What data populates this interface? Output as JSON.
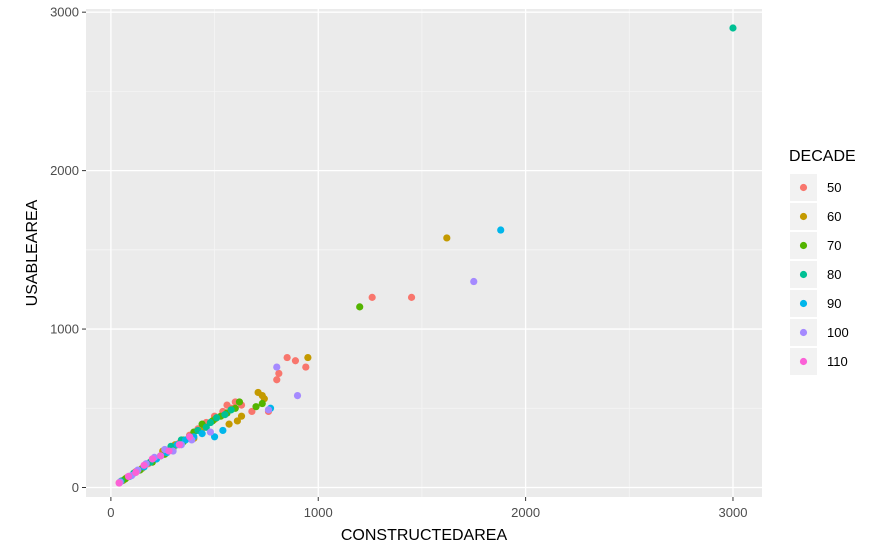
{
  "chart_data": {
    "type": "scatter",
    "title": "",
    "xlabel": "CONSTRUCTEDAREA",
    "ylabel": "USABLEAREA",
    "xlim": [
      -120,
      3140
    ],
    "ylim": [
      -60,
      3020
    ],
    "x_ticks": [
      0,
      1000,
      2000,
      3000
    ],
    "y_ticks": [
      0,
      1000,
      2000,
      3000
    ],
    "grid": true,
    "legend": {
      "title": "DECADE",
      "placement": "right"
    },
    "series": [
      {
        "name": "50",
        "color": "#F8766D",
        "points": [
          [
            40,
            30
          ],
          [
            80,
            65
          ],
          [
            120,
            100
          ],
          [
            180,
            150
          ],
          [
            250,
            210
          ],
          [
            330,
            280
          ],
          [
            380,
            330
          ],
          [
            420,
            370
          ],
          [
            460,
            410
          ],
          [
            500,
            450
          ],
          [
            540,
            480
          ],
          [
            560,
            520
          ],
          [
            580,
            500
          ],
          [
            600,
            540
          ],
          [
            630,
            520
          ],
          [
            680,
            480
          ],
          [
            760,
            480
          ],
          [
            800,
            680
          ],
          [
            810,
            720
          ],
          [
            850,
            820
          ],
          [
            890,
            800
          ],
          [
            940,
            760
          ],
          [
            1260,
            1200
          ],
          [
            1450,
            1200
          ]
        ]
      },
      {
        "name": "60",
        "color": "#C49A00",
        "points": [
          [
            60,
            45
          ],
          [
            150,
            120
          ],
          [
            250,
            230
          ],
          [
            310,
            270
          ],
          [
            350,
            300
          ],
          [
            400,
            310
          ],
          [
            450,
            380
          ],
          [
            500,
            430
          ],
          [
            570,
            400
          ],
          [
            610,
            420
          ],
          [
            630,
            450
          ],
          [
            710,
            600
          ],
          [
            730,
            580
          ],
          [
            740,
            560
          ],
          [
            950,
            820
          ],
          [
            1620,
            1575
          ]
        ]
      },
      {
        "name": "70",
        "color": "#53B400",
        "points": [
          [
            70,
            55
          ],
          [
            140,
            110
          ],
          [
            200,
            160
          ],
          [
            260,
            210
          ],
          [
            300,
            250
          ],
          [
            350,
            290
          ],
          [
            400,
            350
          ],
          [
            440,
            400
          ],
          [
            490,
            420
          ],
          [
            530,
            450
          ],
          [
            560,
            470
          ],
          [
            600,
            500
          ],
          [
            620,
            540
          ],
          [
            700,
            510
          ],
          [
            730,
            530
          ],
          [
            1200,
            1140
          ]
        ]
      },
      {
        "name": "80",
        "color": "#00C094",
        "points": [
          [
            50,
            40
          ],
          [
            110,
            90
          ],
          [
            190,
            160
          ],
          [
            240,
            200
          ],
          [
            290,
            260
          ],
          [
            340,
            300
          ],
          [
            380,
            320
          ],
          [
            420,
            360
          ],
          [
            460,
            380
          ],
          [
            480,
            410
          ],
          [
            510,
            440
          ],
          [
            550,
            460
          ],
          [
            580,
            490
          ],
          [
            3000,
            2900
          ]
        ]
      },
      {
        "name": "90",
        "color": "#00B6EB",
        "points": [
          [
            90,
            70
          ],
          [
            160,
            130
          ],
          [
            220,
            180
          ],
          [
            270,
            220
          ],
          [
            320,
            270
          ],
          [
            360,
            300
          ],
          [
            400,
            320
          ],
          [
            440,
            340
          ],
          [
            500,
            320
          ],
          [
            540,
            360
          ],
          [
            770,
            500
          ],
          [
            1880,
            1625
          ]
        ]
      },
      {
        "name": "100",
        "color": "#A58AFF",
        "points": [
          [
            45,
            35
          ],
          [
            100,
            75
          ],
          [
            130,
            110
          ],
          [
            170,
            150
          ],
          [
            210,
            190
          ],
          [
            260,
            240
          ],
          [
            300,
            230
          ],
          [
            340,
            270
          ],
          [
            390,
            300
          ],
          [
            480,
            350
          ],
          [
            760,
            490
          ],
          [
            800,
            760
          ],
          [
            900,
            580
          ],
          [
            1750,
            1300
          ]
        ]
      },
      {
        "name": "110",
        "color": "#FB61D7",
        "points": [
          [
            40,
            28
          ],
          [
            85,
            70
          ],
          [
            120,
            95
          ],
          [
            160,
            140
          ],
          [
            200,
            180
          ],
          [
            240,
            200
          ],
          [
            280,
            230
          ],
          [
            330,
            270
          ],
          [
            380,
            320
          ]
        ]
      }
    ]
  }
}
